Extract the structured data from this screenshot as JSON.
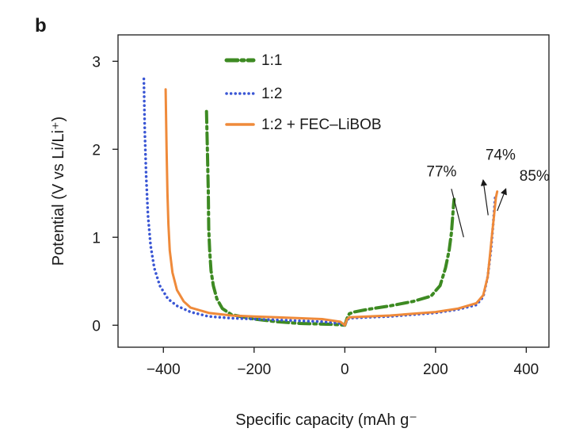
{
  "panel_label": "b",
  "colors": {
    "s1": "#3d8a22",
    "s2": "#3a56d4",
    "s3": "#ef8a3a",
    "axis": "#1a1a1a"
  },
  "chart_data": {
    "type": "line",
    "xlabel": "Specific capacity (mAh g⁻",
    "ylabel": "Potential (V vs Li/Li⁺)",
    "xlim": [
      -500,
      450
    ],
    "ylim": [
      -0.25,
      3.3
    ],
    "xticks": [
      -400,
      -200,
      0,
      200,
      400
    ],
    "yticks": [
      0,
      1,
      2,
      3
    ],
    "xtick_labels": [
      "−400",
      "−200",
      "0",
      "200",
      "400"
    ],
    "ytick_labels": [
      "0",
      "1",
      "2",
      "3"
    ],
    "grid": false,
    "legend_position": "top-left",
    "series": [
      {
        "name": "1:1",
        "style": "dash-dot",
        "color": "#3d8a22",
        "x": [
          -305,
          -303,
          -301,
          -300,
          -298,
          -295,
          -290,
          -282,
          -270,
          -250,
          -200,
          -150,
          -100,
          -60,
          -30,
          -10,
          0,
          5,
          10,
          20,
          50,
          100,
          150,
          190,
          210,
          222,
          230,
          235,
          238,
          240,
          241
        ],
        "y": [
          2.43,
          2.0,
          1.5,
          1.1,
          0.85,
          0.62,
          0.45,
          0.3,
          0.19,
          0.12,
          0.07,
          0.04,
          0.02,
          0.015,
          0.01,
          0.005,
          0.0,
          0.08,
          0.13,
          0.15,
          0.18,
          0.22,
          0.27,
          0.33,
          0.45,
          0.65,
          0.85,
          1.05,
          1.25,
          1.38,
          1.43
        ]
      },
      {
        "name": "1:2",
        "style": "dotted",
        "color": "#3a56d4",
        "x": [
          -443,
          -441,
          -438,
          -434,
          -428,
          -420,
          -408,
          -390,
          -370,
          -340,
          -300,
          -250,
          -200,
          -150,
          -100,
          -50,
          -10,
          0,
          5,
          10,
          50,
          100,
          150,
          200,
          250,
          290,
          305,
          315,
          322,
          327,
          330,
          332
        ],
        "y": [
          2.8,
          2.2,
          1.7,
          1.25,
          0.9,
          0.65,
          0.45,
          0.3,
          0.22,
          0.15,
          0.1,
          0.08,
          0.07,
          0.06,
          0.05,
          0.04,
          0.02,
          0.0,
          0.06,
          0.08,
          0.09,
          0.1,
          0.12,
          0.14,
          0.18,
          0.23,
          0.32,
          0.55,
          0.85,
          1.15,
          1.35,
          1.48
        ]
      },
      {
        "name": "1:2 + FEC–LiBOB",
        "style": "solid",
        "color": "#ef8a3a",
        "x": [
          -395,
          -393,
          -391,
          -389,
          -386,
          -380,
          -370,
          -355,
          -340,
          -300,
          -250,
          -200,
          -150,
          -100,
          -50,
          -10,
          0,
          5,
          10,
          50,
          100,
          150,
          200,
          250,
          290,
          305,
          315,
          320,
          325,
          330,
          333,
          336
        ],
        "y": [
          2.68,
          2.0,
          1.5,
          1.15,
          0.85,
          0.6,
          0.4,
          0.27,
          0.2,
          0.14,
          0.11,
          0.1,
          0.09,
          0.08,
          0.07,
          0.04,
          0.0,
          0.07,
          0.09,
          0.1,
          0.11,
          0.13,
          0.15,
          0.19,
          0.25,
          0.34,
          0.55,
          0.8,
          1.05,
          1.3,
          1.45,
          1.52
        ]
      }
    ],
    "annotations": [
      {
        "text": "77%",
        "x": 180,
        "y": 1.69
      },
      {
        "text": "74%",
        "x": 310,
        "y": 1.88
      },
      {
        "text": "85%",
        "x": 385,
        "y": 1.64
      }
    ]
  }
}
